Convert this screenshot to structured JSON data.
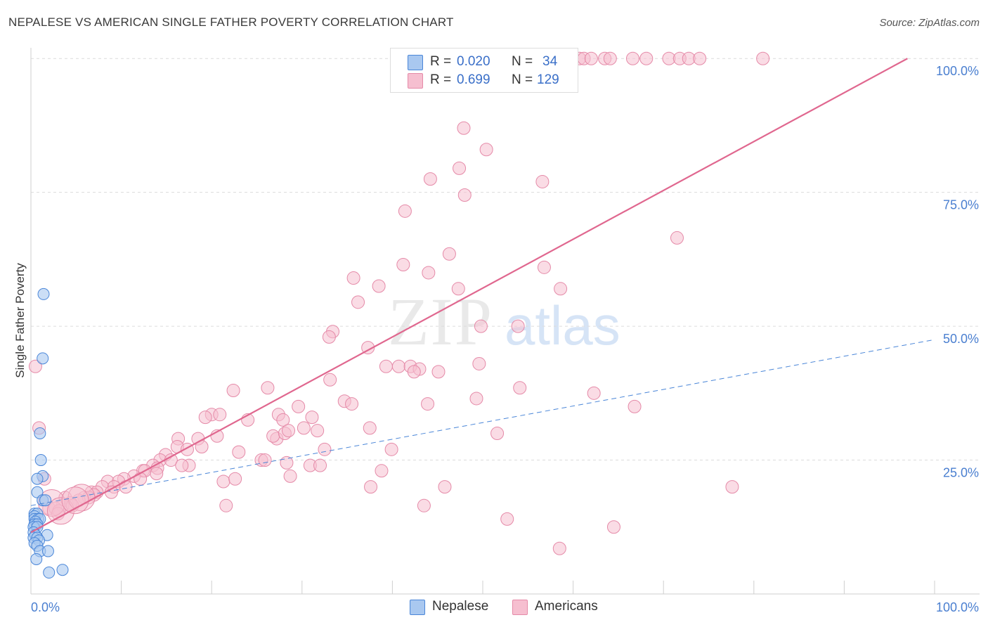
{
  "title": "NEPALESE VS AMERICAN SINGLE FATHER POVERTY CORRELATION CHART",
  "source": "Source: ZipAtlas.com",
  "watermark": {
    "zip": "ZIP",
    "atlas": "atlas"
  },
  "legend": {
    "nepalese": {
      "r_label": "R =",
      "r_value": "0.020",
      "n_label": "N =",
      "n_value": "34"
    },
    "americans": {
      "r_label": "R =",
      "r_value": "0.699",
      "n_label": "N =",
      "n_value": "129"
    }
  },
  "bottom_legend": {
    "nepalese": "Nepalese",
    "americans": "Americans"
  },
  "colors": {
    "nepalese_fill": "#a9c8f0",
    "nepalese_stroke": "#4a86d8",
    "americans_fill": "#f6bfd0",
    "americans_stroke": "#e58aa8",
    "americans_line": "#e0678f",
    "nepalese_line": "#4a86d8",
    "tick_text": "#4a7fd0"
  },
  "chart_data": {
    "type": "scatter",
    "title": "NEPALESE VS AMERICAN SINGLE FATHER POVERTY CORRELATION CHART",
    "xlabel": "",
    "ylabel": "Single Father Poverty",
    "xlim": [
      0,
      100
    ],
    "ylim": [
      0,
      102
    ],
    "x_tick_labels": [
      "0.0%",
      "100.0%"
    ],
    "y_ticks": [
      25,
      50,
      75,
      100
    ],
    "y_tick_labels": [
      "25.0%",
      "50.0%",
      "75.0%",
      "100.0%"
    ],
    "grid": true,
    "series": [
      {
        "name": "Nepalese",
        "r": 0.02,
        "n": 34,
        "trend": {
          "x": [
            0,
            100
          ],
          "y": [
            16.5,
            47.5
          ],
          "style": "dashed"
        },
        "points": [
          [
            1.4,
            56
          ],
          [
            1.3,
            44
          ],
          [
            1.0,
            30
          ],
          [
            1.1,
            25
          ],
          [
            1.3,
            22
          ],
          [
            0.7,
            21.5
          ],
          [
            0.7,
            19
          ],
          [
            1.3,
            17.5
          ],
          [
            1.6,
            17.5
          ],
          [
            0.4,
            15
          ],
          [
            0.7,
            15
          ],
          [
            0.4,
            14.5
          ],
          [
            0.4,
            14
          ],
          [
            0.8,
            14
          ],
          [
            1.0,
            14
          ],
          [
            0.5,
            13.5
          ],
          [
            0.4,
            13
          ],
          [
            0.7,
            13
          ],
          [
            0.3,
            12.5
          ],
          [
            0.7,
            12.5
          ],
          [
            0.3,
            11.5
          ],
          [
            0.5,
            11
          ],
          [
            1.8,
            11
          ],
          [
            0.3,
            10.5
          ],
          [
            0.7,
            10.5
          ],
          [
            0.9,
            10
          ],
          [
            0.4,
            9.5
          ],
          [
            0.7,
            9
          ],
          [
            1.0,
            8
          ],
          [
            1.9,
            8
          ],
          [
            0.6,
            6.5
          ],
          [
            3.5,
            4.5
          ],
          [
            2.0,
            4
          ]
        ]
      },
      {
        "name": "Americans",
        "r": 0.699,
        "n": 129,
        "trend": {
          "x": [
            0,
            97
          ],
          "y": [
            11.5,
            100
          ],
          "style": "solid"
        },
        "points": [
          [
            60.7,
            100
          ],
          [
            61.2,
            100
          ],
          [
            62.0,
            100
          ],
          [
            63.5,
            100
          ],
          [
            64.1,
            100
          ],
          [
            66.6,
            100
          ],
          [
            68.1,
            100
          ],
          [
            70.6,
            100
          ],
          [
            71.8,
            100
          ],
          [
            72.8,
            100
          ],
          [
            74.0,
            100
          ],
          [
            81.0,
            100
          ],
          [
            47.9,
            87
          ],
          [
            50.4,
            83
          ],
          [
            47.4,
            79.5
          ],
          [
            44.2,
            77.5
          ],
          [
            56.6,
            77
          ],
          [
            48.0,
            74.5
          ],
          [
            41.4,
            71.5
          ],
          [
            71.5,
            66.5
          ],
          [
            46.3,
            63.5
          ],
          [
            41.2,
            61.5
          ],
          [
            56.8,
            61
          ],
          [
            44.0,
            60
          ],
          [
            35.7,
            59
          ],
          [
            38.5,
            57.5
          ],
          [
            47.3,
            57
          ],
          [
            58.6,
            57
          ],
          [
            36.2,
            54.5
          ],
          [
            49.8,
            50
          ],
          [
            53.9,
            50
          ],
          [
            33.4,
            49
          ],
          [
            33.0,
            48
          ],
          [
            37.3,
            46
          ],
          [
            49.6,
            43
          ],
          [
            39.3,
            42.5
          ],
          [
            40.7,
            42.5
          ],
          [
            42.0,
            42.5
          ],
          [
            43.0,
            42
          ],
          [
            42.4,
            41.5
          ],
          [
            45.1,
            41.5
          ],
          [
            33.1,
            40
          ],
          [
            26.2,
            38.5
          ],
          [
            22.4,
            38
          ],
          [
            54.1,
            38.5
          ],
          [
            62.3,
            37.5
          ],
          [
            49.3,
            36.5
          ],
          [
            34.7,
            36
          ],
          [
            35.5,
            35.5
          ],
          [
            43.9,
            35.5
          ],
          [
            66.8,
            35
          ],
          [
            29.6,
            35
          ],
          [
            20.0,
            33.5
          ],
          [
            20.9,
            33.5
          ],
          [
            27.4,
            33.5
          ],
          [
            19.3,
            33
          ],
          [
            31.1,
            33
          ],
          [
            24.0,
            32.5
          ],
          [
            27.9,
            32.5
          ],
          [
            30.2,
            31
          ],
          [
            31.7,
            30.5
          ],
          [
            37.5,
            31
          ],
          [
            51.6,
            30
          ],
          [
            20.6,
            29.5
          ],
          [
            27.2,
            29
          ],
          [
            26.8,
            29.5
          ],
          [
            28.1,
            30
          ],
          [
            28.5,
            30.5
          ],
          [
            16.3,
            29
          ],
          [
            18.5,
            29
          ],
          [
            16.2,
            27.5
          ],
          [
            17.3,
            27
          ],
          [
            18.9,
            27.5
          ],
          [
            23.0,
            26.5
          ],
          [
            32.5,
            27
          ],
          [
            39.9,
            27
          ],
          [
            14.9,
            26
          ],
          [
            14.3,
            25
          ],
          [
            15.5,
            25
          ],
          [
            25.5,
            25
          ],
          [
            25.9,
            25
          ],
          [
            28.3,
            24.5
          ],
          [
            30.9,
            24
          ],
          [
            32.0,
            24
          ],
          [
            17.5,
            24
          ],
          [
            16.7,
            24
          ],
          [
            13.5,
            24
          ],
          [
            14.0,
            23.5
          ],
          [
            12.4,
            23
          ],
          [
            12.6,
            23
          ],
          [
            13.9,
            22.5
          ],
          [
            11.4,
            22
          ],
          [
            28.7,
            22
          ],
          [
            38.8,
            23
          ],
          [
            10.3,
            21.5
          ],
          [
            12.1,
            21.5
          ],
          [
            8.5,
            21
          ],
          [
            9.7,
            21
          ],
          [
            21.3,
            21
          ],
          [
            22.6,
            21.5
          ],
          [
            7.9,
            20
          ],
          [
            9.2,
            20
          ],
          [
            10.5,
            20
          ],
          [
            37.6,
            20
          ],
          [
            45.8,
            20
          ],
          [
            77.6,
            20
          ],
          [
            6.7,
            19
          ],
          [
            7.3,
            19
          ],
          [
            8.9,
            19
          ],
          [
            7.0,
            18.5
          ],
          [
            5.9,
            18
          ],
          [
            6.4,
            18
          ],
          [
            3.8,
            18
          ],
          [
            5.3,
            17.5
          ],
          [
            4.4,
            17
          ],
          [
            3.5,
            16.5
          ],
          [
            4.6,
            16.5
          ],
          [
            2.0,
            16
          ],
          [
            2.7,
            16
          ],
          [
            3.1,
            15.5
          ],
          [
            21.6,
            16.5
          ],
          [
            43.5,
            16.5
          ],
          [
            3.0,
            15
          ],
          [
            52.7,
            14
          ],
          [
            64.5,
            12.5
          ],
          [
            58.5,
            8.5
          ],
          [
            0.5,
            42.5
          ],
          [
            0.9,
            31
          ],
          [
            1.5,
            21.5
          ]
        ],
        "big_points": [
          [
            2.3,
            17
          ],
          [
            3.3,
            15.5
          ],
          [
            5.6,
            18
          ],
          [
            4.9,
            17.5
          ]
        ]
      }
    ]
  }
}
